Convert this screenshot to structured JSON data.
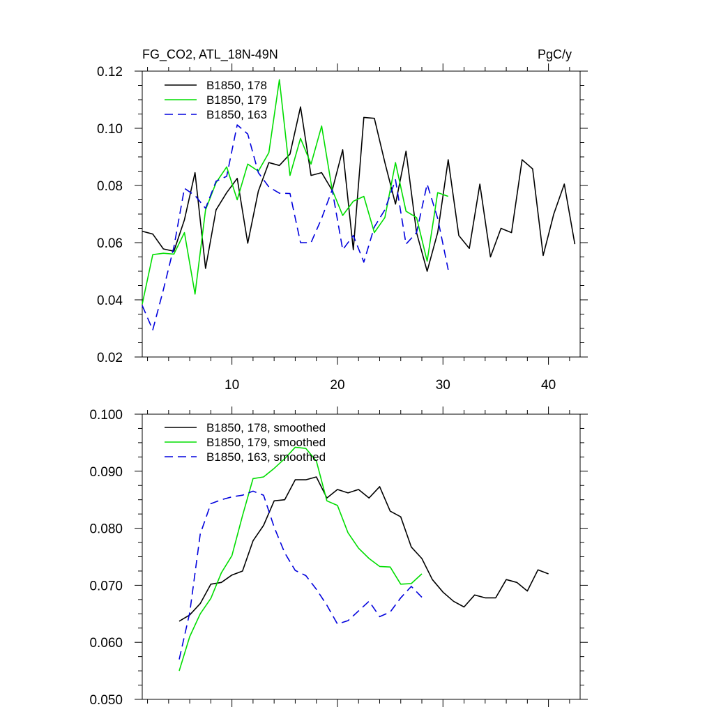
{
  "chart_data": [
    {
      "type": "line",
      "title_left": "FG_CO2, ATL_18N-49N",
      "title_right": "PgC/y",
      "xlim": [
        1.5,
        43
      ],
      "ylim": [
        0.02,
        0.12
      ],
      "x_ticks": [
        10,
        20,
        30,
        40
      ],
      "y_ticks": [
        "0.02",
        "0.04",
        "0.06",
        "0.08",
        "0.10",
        "0.12"
      ],
      "series": [
        {
          "name": "B1850, 178",
          "color": "#000000",
          "dash": "solid",
          "x": [
            1.5,
            2.5,
            3.5,
            4.5,
            5.5,
            6.5,
            7.5,
            8.5,
            9.5,
            10.5,
            11.5,
            12.5,
            13.5,
            14.5,
            15.5,
            16.5,
            17.5,
            18.5,
            19.5,
            20.5,
            21.5,
            22.5,
            23.5,
            24.5,
            25.5,
            26.5,
            27.5,
            28.5,
            29.5,
            30.5,
            31.5,
            32.5,
            33.5,
            34.5,
            35.5,
            36.5,
            37.5,
            38.5,
            39.5,
            40.5,
            41.5,
            42.5
          ],
          "y": [
            0.064,
            0.063,
            0.0578,
            0.057,
            0.068,
            0.0845,
            0.051,
            0.0715,
            0.0775,
            0.0825,
            0.0598,
            0.078,
            0.088,
            0.087,
            0.091,
            0.1075,
            0.0835,
            0.0845,
            0.0783,
            0.0925,
            0.0575,
            0.1038,
            0.1035,
            0.088,
            0.0735,
            0.092,
            0.0635,
            0.05,
            0.0635,
            0.089,
            0.0625,
            0.058,
            0.0805,
            0.055,
            0.065,
            0.0635,
            0.089,
            0.0858,
            0.0555,
            0.07,
            0.0805,
            0.0595
          ]
        },
        {
          "name": "B1850, 179",
          "color": "#00dd00",
          "dash": "solid",
          "x": [
            1.5,
            2.5,
            3.5,
            4.5,
            5.5,
            6.5,
            7.5,
            8.5,
            9.5,
            10.5,
            11.5,
            12.5,
            13.5,
            14.5,
            15.5,
            16.5,
            17.5,
            18.5,
            19.5,
            20.5,
            21.5,
            22.5,
            23.5,
            24.5,
            25.5,
            26.5,
            27.5,
            28.5,
            29.5,
            30.5
          ],
          "y": [
            0.0385,
            0.0558,
            0.0563,
            0.056,
            0.0635,
            0.042,
            0.0715,
            0.081,
            0.0865,
            0.075,
            0.0875,
            0.085,
            0.0915,
            0.117,
            0.0835,
            0.0965,
            0.0875,
            0.1008,
            0.0785,
            0.0695,
            0.0745,
            0.0762,
            0.0635,
            0.0688,
            0.088,
            0.071,
            0.0688,
            0.0535,
            0.0775,
            0.0762
          ]
        },
        {
          "name": "B1850, 163",
          "color": "#0000dd",
          "dash": "dashed",
          "x": [
            1.5,
            2.5,
            3.5,
            4.5,
            5.5,
            6.5,
            7.5,
            8.5,
            9.5,
            10.5,
            11.5,
            12.5,
            13.5,
            14.5,
            15.5,
            16.5,
            17.5,
            18.5,
            19.5,
            20.5,
            21.5,
            22.5,
            23.5,
            24.5,
            25.5,
            26.5,
            27.5,
            28.5,
            29.5,
            30.5
          ],
          "y": [
            0.038,
            0.0295,
            0.0435,
            0.0585,
            0.079,
            0.0765,
            0.072,
            0.0815,
            0.0832,
            0.1012,
            0.098,
            0.0845,
            0.0795,
            0.0773,
            0.0772,
            0.06,
            0.06,
            0.0685,
            0.0785,
            0.0575,
            0.0625,
            0.0532,
            0.0655,
            0.0715,
            0.082,
            0.0595,
            0.0635,
            0.0805,
            0.0685,
            0.0505
          ]
        }
      ]
    },
    {
      "type": "line",
      "xlim": [
        1.5,
        43
      ],
      "ylim": [
        0.05,
        0.1
      ],
      "x_ticks": [
        10,
        20,
        30,
        40
      ],
      "y_ticks": [
        "0.050",
        "0.060",
        "0.070",
        "0.080",
        "0.090",
        "0.100"
      ],
      "series": [
        {
          "name": "B1850, 178, smoothed",
          "color": "#000000",
          "dash": "solid",
          "x": [
            5,
            6,
            7,
            8,
            9,
            10,
            11,
            12,
            13,
            14,
            15,
            16,
            17,
            18,
            19,
            20,
            21,
            22,
            23,
            24,
            25,
            26,
            27,
            28,
            29,
            30,
            31,
            32,
            33,
            34,
            35,
            36,
            37,
            38,
            39,
            40
          ],
          "y": [
            0.0637,
            0.0648,
            0.0668,
            0.0702,
            0.0705,
            0.0718,
            0.0725,
            0.0778,
            0.0805,
            0.0848,
            0.085,
            0.0885,
            0.0885,
            0.089,
            0.0853,
            0.0868,
            0.0862,
            0.0868,
            0.0853,
            0.0873,
            0.083,
            0.082,
            0.0767,
            0.0747,
            0.071,
            0.0688,
            0.0672,
            0.0662,
            0.0683,
            0.0678,
            0.0678,
            0.071,
            0.0705,
            0.069,
            0.0727,
            0.072
          ]
        },
        {
          "name": "B1850, 179, smoothed",
          "color": "#00dd00",
          "dash": "solid",
          "x": [
            5,
            6,
            7,
            8,
            9,
            10,
            11,
            12,
            13,
            14,
            15,
            16,
            17,
            18,
            19,
            20,
            21,
            22,
            23,
            24,
            25,
            26,
            27,
            28
          ],
          "y": [
            0.055,
            0.061,
            0.065,
            0.0677,
            0.0722,
            0.0752,
            0.0822,
            0.0887,
            0.089,
            0.0905,
            0.0922,
            0.0942,
            0.094,
            0.0918,
            0.0848,
            0.084,
            0.0792,
            0.0765,
            0.0747,
            0.0733,
            0.0732,
            0.0702,
            0.0703,
            0.072
          ]
        },
        {
          "name": "B1850, 163, smoothed",
          "color": "#0000dd",
          "dash": "dashed",
          "x": [
            5,
            6,
            7,
            8,
            9,
            10,
            11,
            12,
            13,
            14,
            15,
            16,
            17,
            18,
            19,
            20,
            21,
            22,
            23,
            24,
            25,
            26,
            27,
            28
          ],
          "y": [
            0.057,
            0.0652,
            0.079,
            0.0843,
            0.085,
            0.0855,
            0.0858,
            0.0865,
            0.0858,
            0.0802,
            0.0757,
            0.0726,
            0.0717,
            0.0693,
            0.0665,
            0.0632,
            0.0638,
            0.0655,
            0.0672,
            0.0645,
            0.0653,
            0.0678,
            0.0698,
            0.0679
          ]
        }
      ]
    }
  ]
}
